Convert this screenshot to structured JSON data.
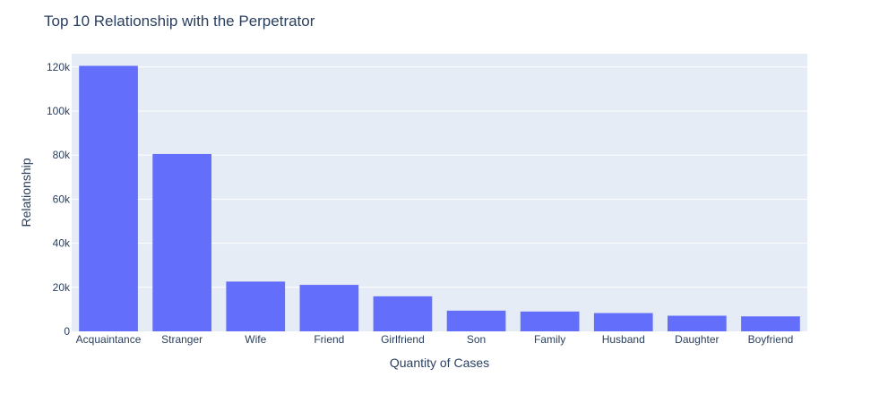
{
  "title": "Top 10 Relationship with the Perpetrator",
  "chart_data": {
    "type": "bar",
    "title": "Top 10 Relationship with the Perpetrator",
    "xlabel": "Quantity of Cases",
    "ylabel": "Relationship",
    "categories": [
      "Acquaintance",
      "Stranger",
      "Wife",
      "Friend",
      "Girlfriend",
      "Son",
      "Family",
      "Husband",
      "Daughter",
      "Boyfriend"
    ],
    "values": [
      120500,
      80500,
      22600,
      21100,
      15900,
      9400,
      9000,
      8300,
      7100,
      6800
    ],
    "ylim": [
      0,
      126000
    ],
    "yticks": [
      0,
      20000,
      40000,
      60000,
      80000,
      100000,
      120000
    ],
    "ytick_labels": [
      "0",
      "20k",
      "40k",
      "60k",
      "80k",
      "100k",
      "120k"
    ],
    "grid": true,
    "colors": {
      "bar": "#636efa",
      "plot_bg": "#e5ecf6",
      "grid": "#ffffff",
      "text": "#2a3f5f"
    }
  }
}
